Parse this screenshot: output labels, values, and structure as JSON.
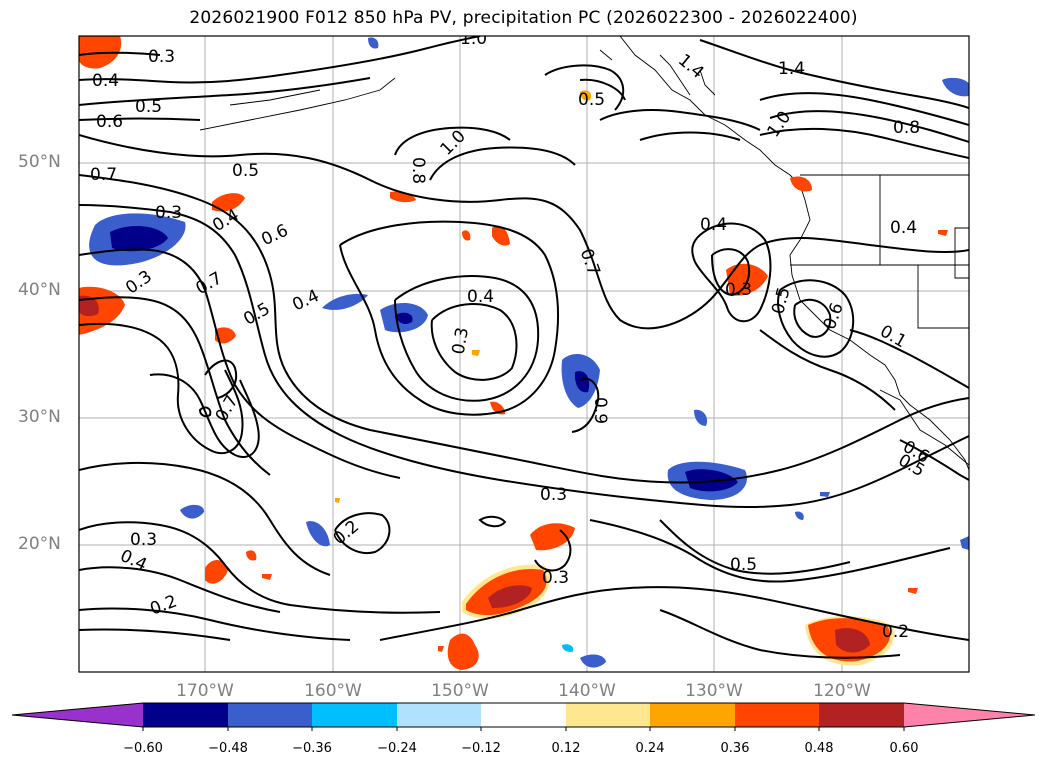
{
  "title": "2026021900 F012 850 hPa PV, precipitation PC (2026022300 - 2026022400)",
  "map": {
    "lat_labels": [
      "50°N",
      "40°N",
      "30°N",
      "20°N"
    ],
    "lon_labels": [
      "170°W",
      "160°W",
      "150°W",
      "140°W",
      "130°W",
      "120°W"
    ],
    "contour_labels": [
      "0.3",
      "0.4",
      "0.5",
      "0.6",
      "0.7",
      "1.0",
      "1.4",
      "1.4",
      "0.8",
      "0.8",
      "1.0",
      "0.5",
      "0.3",
      "0.4",
      "0.6",
      "0.7",
      "0.3",
      "0.5",
      "0.4",
      "0.7",
      "0.3",
      "0.4",
      "0.7",
      "0.4",
      "0.3",
      "0.5",
      "0.6",
      "0.4",
      "0.1",
      "0.6",
      "0.5",
      "0.3",
      "0.5",
      "0.2",
      "0.3",
      "0.4",
      "0.2",
      "0.3",
      "0.2",
      "0.9",
      "0.5",
      "1.0"
    ]
  },
  "colorbar": {
    "ticks": [
      "−0.60",
      "−0.48",
      "−0.36",
      "−0.24",
      "−0.12",
      "0.12",
      "0.24",
      "0.36",
      "0.48",
      "0.60"
    ],
    "colors": [
      "#9932cc",
      "#00008b",
      "#3a5fcd",
      "#00bfff",
      "#b0e2ff",
      "#ffffff",
      "#ffe78f",
      "#ffa500",
      "#ff4500",
      "#b22222",
      "#ff82ab"
    ]
  }
}
